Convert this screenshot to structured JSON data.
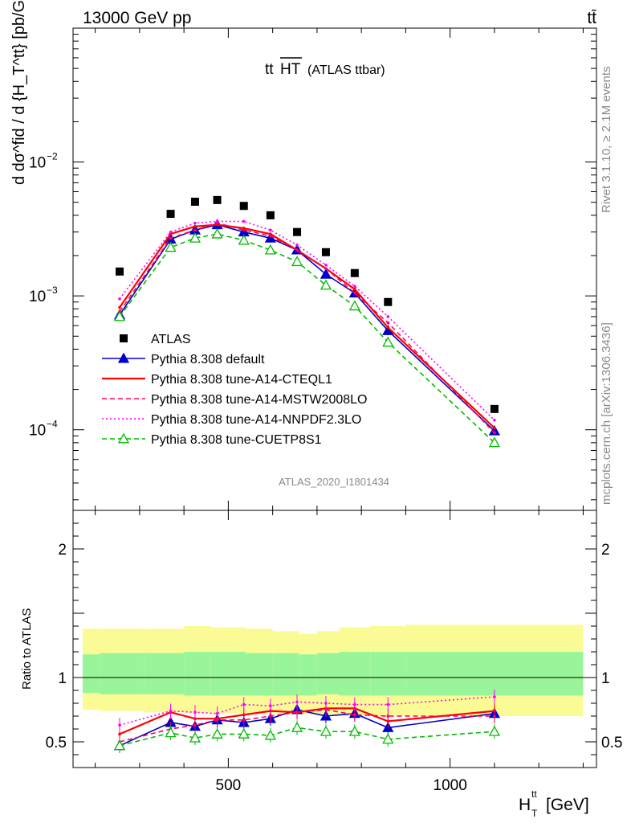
{
  "header": {
    "energy_label": "13000 GeV pp",
    "process_label": "tt̄"
  },
  "side_labels": {
    "rivet": "Rivet 3.1.10, ≥ 2.1M events",
    "mcplots": "mcplots.cern.ch [arXiv:1306.3436]"
  },
  "chart_data": [
    {
      "type": "scatter",
      "panel": "main",
      "title": "tt̄HT (ATLAS ttbar)",
      "title_main": "tt",
      "title_over": "HT",
      "title_suffix": "(ATLAS ttbar)",
      "analysis_label": "ATLAS_2020_I1801434",
      "ylabel": "d dσ^fid / d {H_T^tt} [pb/GeV]",
      "yscale": "log",
      "ylim": [
        2.5e-05,
        0.1
      ],
      "xlim": [
        150,
        1330
      ],
      "yticks": [
        {
          "v": 0.01,
          "label": "10",
          "exp": "−2"
        },
        {
          "v": 0.001,
          "label": "10",
          "exp": "−3"
        },
        {
          "v": 0.0001,
          "label": "10",
          "exp": "−4"
        }
      ],
      "x": [
        255,
        370,
        425,
        475,
        535,
        595,
        655,
        720,
        785,
        860,
        1100
      ],
      "series": [
        {
          "name": "ATLAS",
          "color": "#000000",
          "style": "data",
          "values": [
            0.00152,
            0.0041,
            0.00505,
            0.0052,
            0.0047,
            0.004,
            0.003,
            0.00212,
            0.00148,
            0.0009,
            0.000143
          ]
        },
        {
          "name": "Pythia 8.308 default",
          "color": "#0000cc",
          "style": "solid-triangle",
          "values": [
            0.00072,
            0.00265,
            0.0031,
            0.0034,
            0.003,
            0.0027,
            0.0022,
            0.00145,
            0.00105,
            0.00055,
            9.8e-05
          ]
        },
        {
          "name": "Pythia 8.308 tune-A14-CTEQL1",
          "color": "#ff0000",
          "style": "solid",
          "values": [
            0.00082,
            0.0029,
            0.0033,
            0.0034,
            0.0032,
            0.0029,
            0.0022,
            0.0016,
            0.00112,
            0.00058,
            0.000103
          ]
        },
        {
          "name": "Pythia 8.308 tune-A14-MSTW2008LO",
          "color": "#ff0055",
          "style": "dashed",
          "values": [
            0.00076,
            0.0027,
            0.0031,
            0.0035,
            0.0031,
            0.0028,
            0.0022,
            0.0016,
            0.00105,
            0.00063,
            9.5e-05
          ]
        },
        {
          "name": "Pythia 8.308 tune-A14-NNPDF2.3LO",
          "color": "#ff00ff",
          "style": "dotted",
          "values": [
            0.00095,
            0.003,
            0.0035,
            0.0036,
            0.0036,
            0.0031,
            0.0024,
            0.0017,
            0.00118,
            0.0007,
            0.000118
          ]
        },
        {
          "name": "Pythia 8.308 tune-CUETP8S1",
          "color": "#00bb00",
          "style": "dashed-open-triangle",
          "values": [
            0.0007,
            0.0023,
            0.0027,
            0.0029,
            0.0026,
            0.0022,
            0.0018,
            0.0012,
            0.00084,
            0.00045,
            8e-05
          ]
        }
      ]
    },
    {
      "type": "line",
      "panel": "ratio",
      "ylabel": "Ratio to ATLAS",
      "xlabel": "H_T^tt [GeV]",
      "xlabel_main": "H",
      "xlabel_sup": "tt",
      "xlabel_sub": "T",
      "xlabel_unit": "[GeV]",
      "ylim": [
        0.3,
        2.3
      ],
      "xlim": [
        150,
        1330
      ],
      "yticks": [
        0.5,
        1,
        2
      ],
      "xticks": [
        500,
        1000
      ],
      "bands": {
        "edges": [
          150,
          210,
          310,
          400,
          460,
          540,
          600,
          660,
          700,
          750,
          820,
          900,
          1300
        ],
        "inner": [
          [
            0.88,
            1.18
          ],
          [
            0.87,
            1.19
          ],
          [
            0.87,
            1.19
          ],
          [
            0.86,
            1.2
          ],
          [
            0.86,
            1.2
          ],
          [
            0.86,
            1.19
          ],
          [
            0.86,
            1.19
          ],
          [
            0.86,
            1.18
          ],
          [
            0.87,
            1.19
          ],
          [
            0.86,
            1.2
          ],
          [
            0.86,
            1.2
          ],
          [
            0.86,
            1.2
          ]
        ],
        "outer": [
          [
            0.75,
            1.38
          ],
          [
            0.74,
            1.38
          ],
          [
            0.73,
            1.38
          ],
          [
            0.72,
            1.4
          ],
          [
            0.72,
            1.39
          ],
          [
            0.72,
            1.38
          ],
          [
            0.72,
            1.36
          ],
          [
            0.71,
            1.34
          ],
          [
            0.71,
            1.36
          ],
          [
            0.7,
            1.39
          ],
          [
            0.7,
            1.4
          ],
          [
            0.7,
            1.41
          ]
        ],
        "inner_color": "#99f599",
        "outer_color": "#fbfb96"
      },
      "x": [
        255,
        370,
        425,
        475,
        535,
        595,
        655,
        720,
        785,
        860,
        1100
      ],
      "series": [
        {
          "name": "Pythia 8.308 default",
          "color": "#0000cc",
          "style": "solid-triangle",
          "values": [
            0.47,
            0.65,
            0.62,
            0.67,
            0.65,
            0.68,
            0.75,
            0.7,
            0.72,
            0.61,
            0.72
          ]
        },
        {
          "name": "Pythia 8.308 tune-A14-CTEQL1",
          "color": "#ff0000",
          "style": "solid",
          "values": [
            0.56,
            0.73,
            0.68,
            0.68,
            0.71,
            0.74,
            0.73,
            0.76,
            0.76,
            0.66,
            0.74
          ]
        },
        {
          "name": "Pythia 8.308 tune-A14-MSTW2008LO",
          "color": "#ff0055",
          "style": "dashed",
          "values": [
            0.5,
            0.6,
            0.63,
            0.67,
            0.67,
            0.7,
            0.73,
            0.75,
            0.71,
            0.7,
            0.7
          ]
        },
        {
          "name": "Pythia 8.308 tune-A14-NNPDF2.3LO",
          "color": "#ff00ff",
          "style": "dotted",
          "values": [
            0.63,
            0.74,
            0.73,
            0.72,
            0.79,
            0.78,
            0.81,
            0.8,
            0.79,
            0.79,
            0.85
          ]
        },
        {
          "name": "Pythia 8.308 tune-CUETP8S1",
          "color": "#00bb00",
          "style": "dashed-open-triangle",
          "values": [
            0.47,
            0.57,
            0.53,
            0.56,
            0.56,
            0.55,
            0.61,
            0.58,
            0.58,
            0.52,
            0.58
          ]
        }
      ]
    }
  ]
}
